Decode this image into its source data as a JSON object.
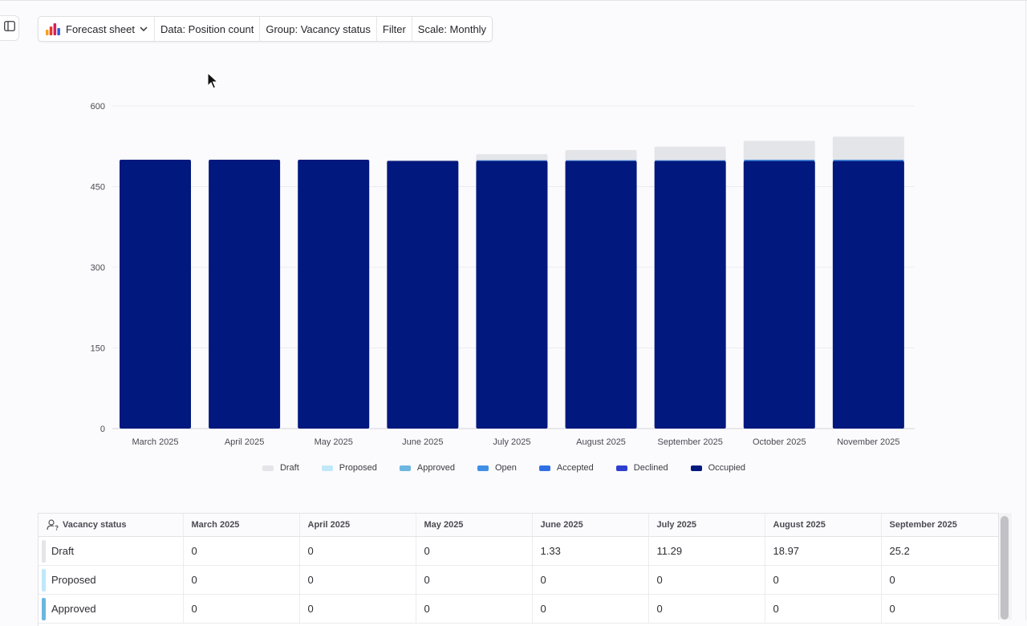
{
  "toolbar": {
    "sheet_label": "Forecast sheet",
    "data_label": "Data: Position count",
    "group_label": "Group: Vacancy status",
    "filter_label": "Filter",
    "scale_label": "Scale: Monthly"
  },
  "colors": {
    "Draft": "#e4e5e9",
    "Proposed": "#bfe8f9",
    "Approved": "#6cb6e0",
    "Open": "#3f8fe6",
    "Accepted": "#2f6fe6",
    "Declined": "#2e3fd0",
    "Occupied": "#01187e"
  },
  "chart_data": {
    "type": "bar",
    "stacked": true,
    "categories": [
      "March 2025",
      "April 2025",
      "May 2025",
      "June 2025",
      "July 2025",
      "August 2025",
      "September 2025",
      "October 2025",
      "November 2025"
    ],
    "ylim": [
      0,
      600
    ],
    "yticks": [
      "0",
      "150",
      "300",
      "450",
      "600"
    ],
    "grid": true,
    "legend_position": "bottom",
    "series": [
      {
        "name": "Occupied",
        "values": [
          500,
          500,
          500,
          498,
          498,
          498,
          498,
          498,
          498
        ]
      },
      {
        "name": "Declined",
        "values": [
          0,
          0,
          0,
          0,
          0,
          0,
          0,
          0,
          0
        ]
      },
      {
        "name": "Accepted",
        "values": [
          0,
          0,
          0,
          0,
          0,
          0,
          0,
          0,
          0
        ]
      },
      {
        "name": "Open",
        "values": [
          0,
          0,
          0,
          0,
          1,
          1,
          1,
          2,
          2
        ]
      },
      {
        "name": "Approved",
        "values": [
          0,
          0,
          0,
          0,
          0,
          0,
          0,
          0,
          0
        ]
      },
      {
        "name": "Proposed",
        "values": [
          0,
          0,
          0,
          0,
          0,
          0,
          0,
          0,
          0
        ]
      },
      {
        "name": "Draft",
        "values": [
          0,
          0,
          0,
          1.33,
          11.29,
          18.97,
          25.2,
          35,
          43
        ]
      }
    ]
  },
  "legend": [
    "Draft",
    "Proposed",
    "Approved",
    "Open",
    "Accepted",
    "Declined",
    "Occupied"
  ],
  "table": {
    "header_first": "Vacancy status",
    "columns": [
      "March 2025",
      "April 2025",
      "May 2025",
      "June 2025",
      "July 2025",
      "August 2025",
      "September 2025"
    ],
    "rows": [
      {
        "label": "Draft",
        "values": [
          "0",
          "0",
          "0",
          "1.33",
          "11.29",
          "18.97",
          "25.2"
        ]
      },
      {
        "label": "Proposed",
        "values": [
          "0",
          "0",
          "0",
          "0",
          "0",
          "0",
          "0"
        ]
      },
      {
        "label": "Approved",
        "values": [
          "0",
          "0",
          "0",
          "0",
          "0",
          "0",
          "0"
        ]
      }
    ]
  }
}
